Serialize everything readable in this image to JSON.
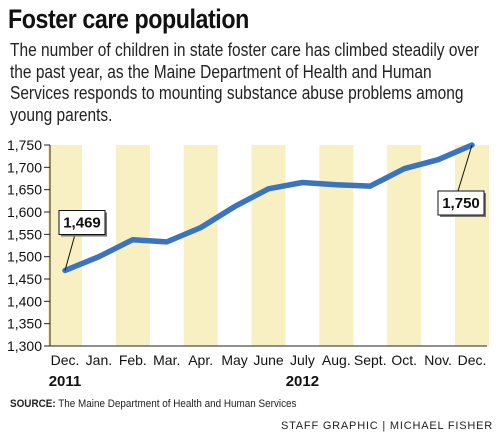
{
  "title": "Foster care population",
  "subtitle": "The number of children in state foster care has climbed steadily over the past year, as the Maine Department of Health and Human Services responds to mounting substance abuse problems among young parents.",
  "source_label": "SOURCE:",
  "source_text": "The Maine Department of Health and Human Services",
  "credit": "STAFF GRAPHIC | MICHAEL FISHER",
  "colors": {
    "line": "#3a74bf",
    "band": "#f8f0c3",
    "text": "#111111"
  },
  "chart_data": {
    "type": "line",
    "categories": [
      "Dec.",
      "Jan.",
      "Feb.",
      "Mar.",
      "Apr.",
      "May",
      "June",
      "July",
      "Aug.",
      "Sept.",
      "Oct.",
      "Nov.",
      "Dec."
    ],
    "year_labels": [
      {
        "index": 0,
        "label": "2011"
      },
      {
        "index": 7,
        "label": "2012"
      }
    ],
    "values": [
      1469,
      1500,
      1538,
      1533,
      1565,
      1612,
      1652,
      1666,
      1661,
      1658,
      1697,
      1717,
      1750
    ],
    "ylim": [
      1300,
      1750
    ],
    "yticks": [
      1300,
      1350,
      1400,
      1450,
      1500,
      1550,
      1600,
      1650,
      1700,
      1750
    ],
    "ytick_labels": [
      "1,300",
      "1,350",
      "1,400",
      "1,450",
      "1,500",
      "1,550",
      "1,600",
      "1,650",
      "1,700",
      "1,750"
    ],
    "shaded_bands": true,
    "callouts": [
      {
        "index": 0,
        "label": "1,469"
      },
      {
        "index": 12,
        "label": "1,750"
      }
    ]
  }
}
